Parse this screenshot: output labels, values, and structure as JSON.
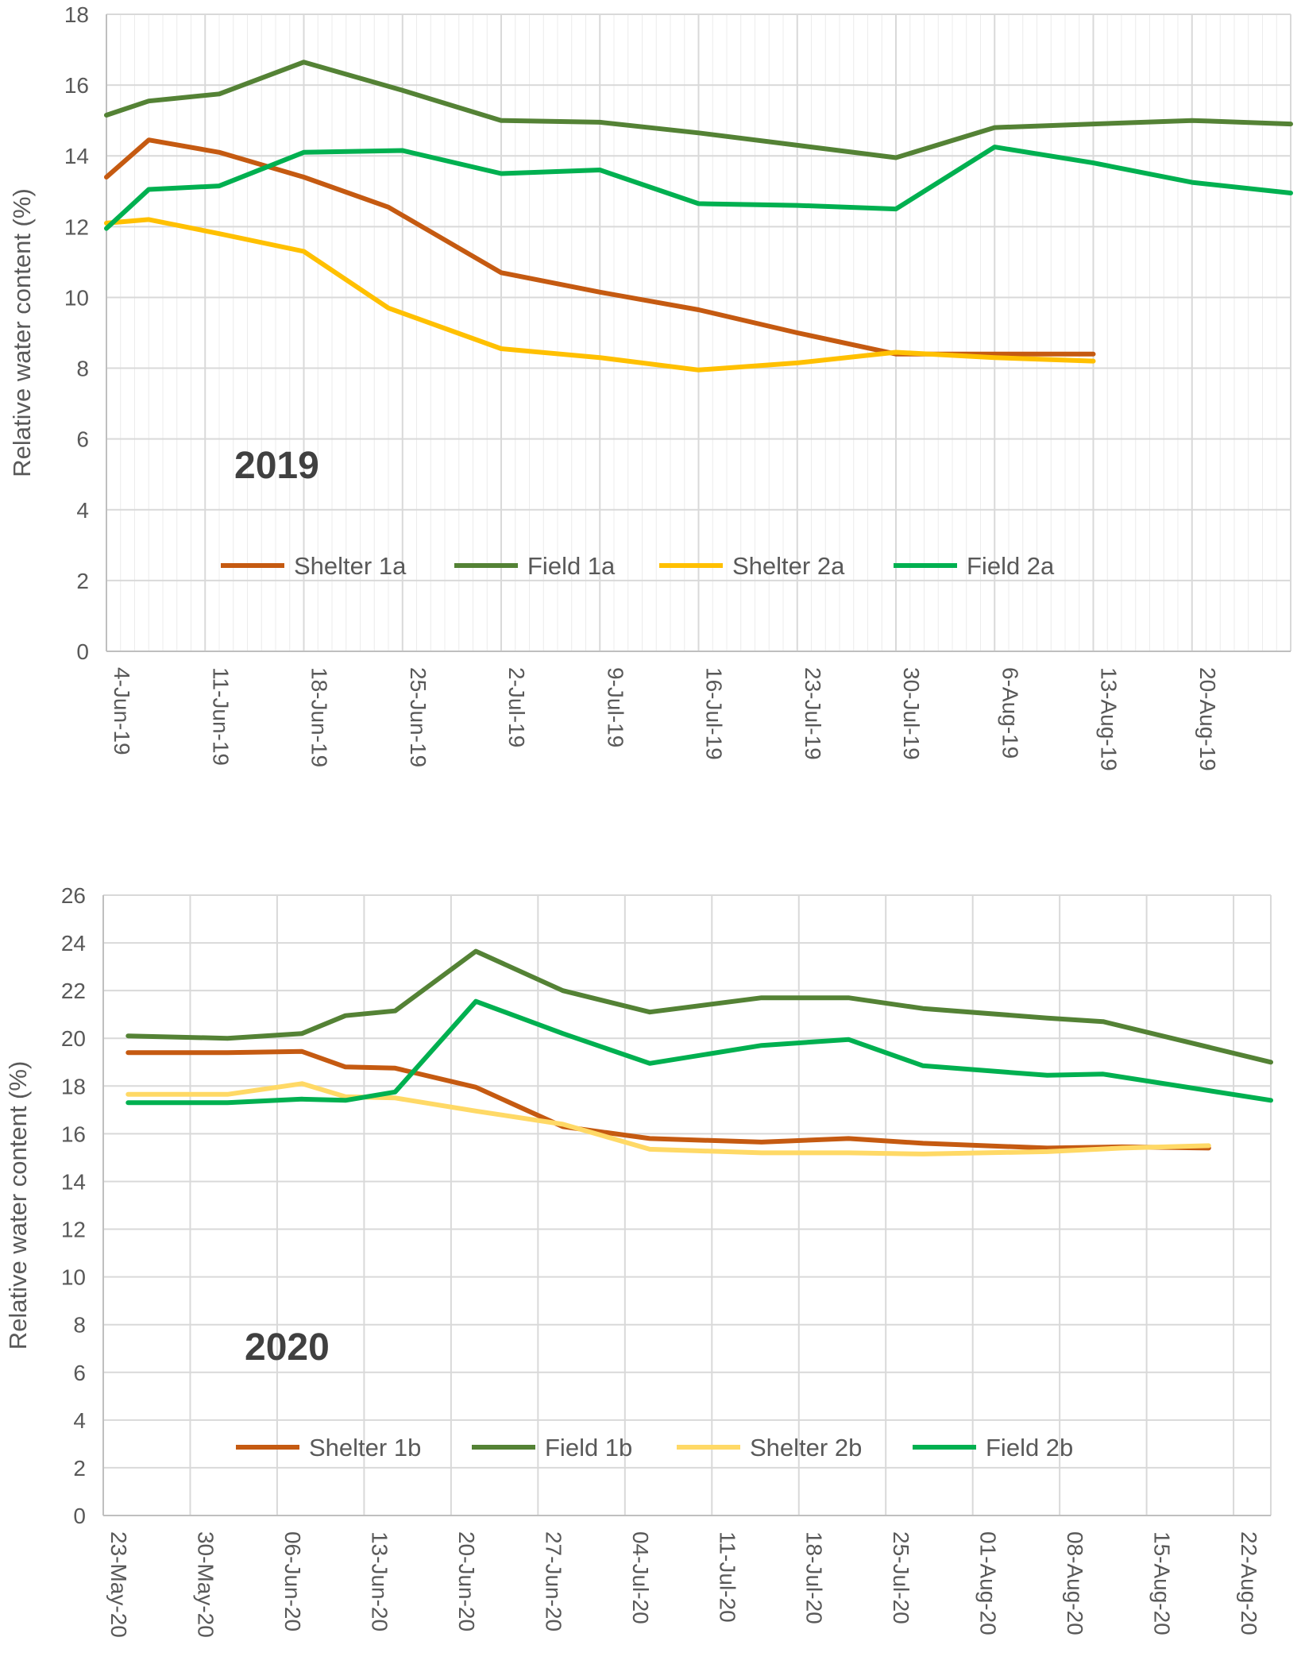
{
  "chart_data": [
    {
      "type": "line",
      "title": "",
      "annotation": "2019",
      "ylabel": "Relative water content (%)",
      "xlabel": "",
      "ylim": [
        0,
        18
      ],
      "yticks": [
        "0",
        "2",
        "4",
        "6",
        "8",
        "10",
        "12",
        "14",
        "16",
        "18"
      ],
      "xlim": [
        0,
        84
      ],
      "xtick_labels": [
        "4-Jun-19",
        "11-Jun-19",
        "18-Jun-19",
        "25-Jun-19",
        "2-Jul-19",
        "9-Jul-19",
        "16-Jul-19",
        "23-Jul-19",
        "30-Jul-19",
        "6-Aug-19",
        "13-Aug-19",
        "20-Aug-19"
      ],
      "xtick_days": [
        0,
        7,
        14,
        21,
        28,
        35,
        42,
        49,
        56,
        63,
        70,
        77
      ],
      "grid": true,
      "minor_vertical_grid": true,
      "legend_position": "lower-center",
      "series": [
        {
          "name": "Shelter 1a",
          "color": "#C55A11",
          "x": [
            0,
            3,
            8,
            14,
            20,
            28,
            35,
            42,
            49,
            56,
            63,
            70
          ],
          "y": [
            13.4,
            14.45,
            14.1,
            13.4,
            12.55,
            10.7,
            10.15,
            9.65,
            9.0,
            8.4,
            8.4,
            8.4
          ]
        },
        {
          "name": "Field 1a",
          "color": "#548235",
          "x": [
            0,
            3,
            8,
            14,
            21,
            28,
            35,
            42,
            49,
            56,
            63,
            70,
            77,
            84
          ],
          "y": [
            15.15,
            15.55,
            15.75,
            16.65,
            15.85,
            15.0,
            14.95,
            14.65,
            14.3,
            13.95,
            14.8,
            14.9,
            15.0,
            14.9
          ]
        },
        {
          "name": "Shelter 2a",
          "color": "#FFC000",
          "x": [
            0,
            3,
            8,
            14,
            20,
            28,
            35,
            42,
            49,
            56,
            63,
            70
          ],
          "y": [
            12.1,
            12.2,
            11.8,
            11.3,
            9.7,
            8.55,
            8.3,
            7.95,
            8.15,
            8.45,
            8.3,
            8.2
          ]
        },
        {
          "name": "Field 2a",
          "color": "#00B050",
          "x": [
            0,
            3,
            8,
            14,
            21,
            28,
            35,
            42,
            49,
            56,
            63,
            70,
            77,
            84
          ],
          "y": [
            11.95,
            13.05,
            13.15,
            14.1,
            14.15,
            13.5,
            13.6,
            12.65,
            12.6,
            12.5,
            14.25,
            13.8,
            13.25,
            12.95
          ]
        }
      ]
    },
    {
      "type": "line",
      "title": "",
      "annotation": "2020",
      "ylabel": "Relative water content (%)",
      "xlabel": "",
      "ylim": [
        0,
        26
      ],
      "yticks": [
        "0",
        "2",
        "4",
        "6",
        "8",
        "10",
        "12",
        "14",
        "16",
        "18",
        "20",
        "22",
        "24",
        "26"
      ],
      "xlim": [
        0,
        94
      ],
      "xtick_labels": [
        "23-May-20",
        "30-May-20",
        "06-Jun-20",
        "13-Jun-20",
        "20-Jun-20",
        "27-Jun-20",
        "04-Jul-20",
        "11-Jul-20",
        "18-Jul-20",
        "25-Jul-20",
        "01-Aug-20",
        "08-Aug-20",
        "15-Aug-20",
        "22-Aug-20"
      ],
      "xtick_days": [
        0,
        7,
        14,
        21,
        28,
        35,
        42,
        49,
        56,
        63,
        70,
        77,
        84,
        91
      ],
      "grid": true,
      "minor_vertical_grid": false,
      "legend_position": "lower-center",
      "series": [
        {
          "name": "Shelter 1b",
          "color": "#C55A11",
          "x": [
            2,
            10,
            16,
            19.5,
            23.5,
            30,
            37,
            44,
            53,
            60,
            66,
            76,
            82,
            89
          ],
          "y": [
            19.4,
            19.4,
            19.45,
            18.8,
            18.75,
            17.95,
            16.3,
            15.8,
            15.65,
            15.8,
            15.6,
            15.4,
            15.45,
            15.4
          ]
        },
        {
          "name": "Field 1b",
          "color": "#548235",
          "x": [
            2,
            10,
            16,
            19.5,
            23.5,
            30,
            37,
            44,
            53,
            60,
            66,
            76,
            80.5,
            94
          ],
          "y": [
            20.1,
            20.0,
            20.2,
            20.95,
            21.15,
            23.65,
            22.0,
            21.1,
            21.7,
            21.7,
            21.25,
            20.85,
            20.7,
            19.0
          ]
        },
        {
          "name": "Shelter 2b",
          "color": "#FFD966",
          "x": [
            2,
            10,
            16,
            19.5,
            23.5,
            30,
            37,
            44,
            53,
            60,
            66,
            76,
            82,
            89
          ],
          "y": [
            17.65,
            17.65,
            18.1,
            17.55,
            17.5,
            16.95,
            16.4,
            15.35,
            15.2,
            15.2,
            15.15,
            15.25,
            15.4,
            15.5
          ]
        },
        {
          "name": "Field 2b",
          "color": "#00B050",
          "x": [
            2,
            10,
            16,
            19.5,
            23.5,
            30,
            37,
            44,
            53,
            60,
            66,
            76,
            80.5,
            94
          ],
          "y": [
            17.3,
            17.3,
            17.45,
            17.4,
            17.75,
            21.55,
            20.2,
            18.95,
            19.7,
            19.95,
            18.85,
            18.45,
            18.5,
            17.4
          ]
        }
      ]
    }
  ]
}
